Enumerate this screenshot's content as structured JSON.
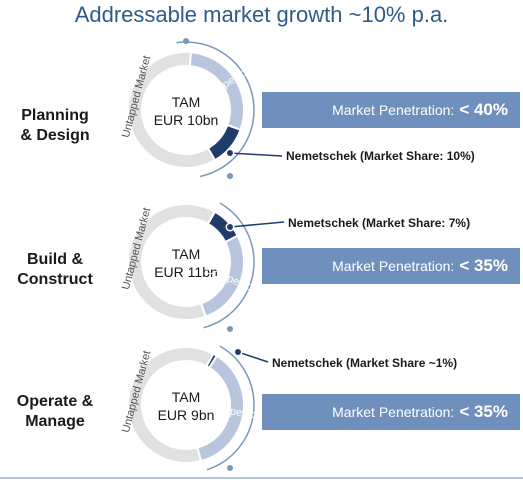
{
  "title": "Addressable market growth ~10% p.a.",
  "segments": [
    {
      "name": "Planning\n& Design",
      "tam_line1": "TAM",
      "tam_line2": "EUR 10bn",
      "untapped_label": "Untapped Market",
      "competitors_label": "Competitors",
      "note": "Nemetschek (Market Share: 10%)",
      "penetration_label": "Market Penetration:",
      "penetration_value": "< 40%",
      "market_share_pct": 10,
      "penetration_pct": 40
    },
    {
      "name": "Build &\nConstruct",
      "tam_line1": "TAM",
      "tam_line2": "EUR 11bn",
      "untapped_label": "Untapped Market",
      "competitors_label": "Competitors",
      "note": "Nemetschek (Market Share: 7%)",
      "penetration_label": "Market Penetration:",
      "penetration_value": "< 35%",
      "market_share_pct": 7,
      "penetration_pct": 35
    },
    {
      "name": "Operate &\nManage",
      "tam_line1": "TAM",
      "tam_line2": "EUR 9bn",
      "untapped_label": "Untapped Market",
      "competitors_label": "Competitors",
      "note": "Nemetschek (Market Share ~1%)",
      "penetration_label": "Market Penetration:",
      "penetration_value": "< 35%",
      "market_share_pct": 1,
      "penetration_pct": 35
    }
  ],
  "colors": {
    "title": "#2f5b8c",
    "untapped": "#e1e1e1",
    "competitors": "#b7c6dd",
    "nemetschek": "#1f3d6b",
    "bar": "#6f8fbd",
    "connector": "#7a96c0"
  }
}
